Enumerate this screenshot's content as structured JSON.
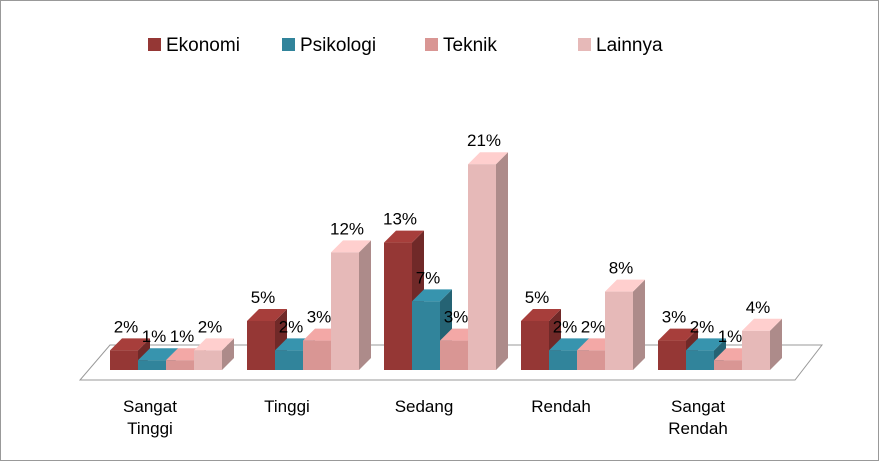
{
  "chart_data": {
    "type": "bar3d",
    "categories": [
      "Sangat Tinggi",
      "Tinggi",
      "Sedang",
      "Rendah",
      "Sangat Rendah"
    ],
    "series": [
      {
        "name": "Ekonomi",
        "color": "#953735",
        "values": [
          2,
          5,
          13,
          5,
          3
        ],
        "value_labels": [
          "2%",
          "5%",
          "13%",
          "5%",
          "3%"
        ]
      },
      {
        "name": "Psikologi",
        "color": "#31849b",
        "values": [
          1,
          2,
          7,
          2,
          2
        ],
        "value_labels": [
          "1%",
          "2%",
          "7%",
          "2%",
          "2%"
        ]
      },
      {
        "name": "Teknik",
        "color": "#d99694",
        "values": [
          1,
          3,
          3,
          2,
          1
        ],
        "value_labels": [
          "1%",
          "3%",
          "3%",
          "2%",
          "1%"
        ]
      },
      {
        "name": "Lainnya",
        "color": "#e6b9b8",
        "values": [
          2,
          12,
          21,
          8,
          4
        ],
        "value_labels": [
          "2%",
          "12%",
          "21%",
          "8%",
          "4%"
        ]
      }
    ],
    "legend": "top"
  }
}
